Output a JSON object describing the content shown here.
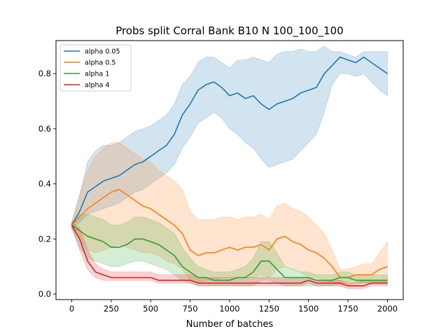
{
  "chart_data": {
    "type": "line",
    "title": "Probs split Corral Bank B10 N 100_100_100",
    "xlabel": "Number of batches",
    "ylabel": "",
    "xlim": [
      -100,
      2100
    ],
    "ylim": [
      -0.02,
      0.92
    ],
    "xticks": [
      0,
      250,
      500,
      750,
      1000,
      1250,
      1500,
      1750,
      2000
    ],
    "yticks": [
      0.0,
      0.2,
      0.4,
      0.6,
      0.8
    ],
    "grid": false,
    "legend_position": "top-left",
    "series": [
      {
        "name": "alpha 0.05",
        "color": "#1f77b4",
        "x": [
          0,
          50,
          100,
          150,
          200,
          250,
          300,
          350,
          400,
          450,
          500,
          550,
          600,
          650,
          700,
          750,
          800,
          850,
          900,
          950,
          1000,
          1050,
          1100,
          1150,
          1200,
          1250,
          1300,
          1350,
          1400,
          1450,
          1500,
          1550,
          1600,
          1650,
          1700,
          1750,
          1800,
          1850,
          1900,
          1950,
          2000
        ],
        "mean": [
          0.25,
          0.3,
          0.37,
          0.39,
          0.41,
          0.42,
          0.43,
          0.45,
          0.47,
          0.48,
          0.5,
          0.52,
          0.54,
          0.58,
          0.65,
          0.69,
          0.74,
          0.76,
          0.77,
          0.75,
          0.72,
          0.73,
          0.71,
          0.72,
          0.69,
          0.67,
          0.69,
          0.7,
          0.71,
          0.73,
          0.74,
          0.75,
          0.8,
          0.83,
          0.86,
          0.85,
          0.84,
          0.86,
          0.84,
          0.82,
          0.8
        ],
        "lower": [
          0.24,
          0.26,
          0.29,
          0.3,
          0.31,
          0.32,
          0.33,
          0.35,
          0.37,
          0.38,
          0.4,
          0.42,
          0.44,
          0.47,
          0.53,
          0.57,
          0.62,
          0.64,
          0.66,
          0.64,
          0.6,
          0.58,
          0.55,
          0.53,
          0.49,
          0.46,
          0.47,
          0.48,
          0.49,
          0.52,
          0.55,
          0.58,
          0.66,
          0.76,
          0.8,
          0.8,
          0.79,
          0.8,
          0.77,
          0.74,
          0.72
        ],
        "upper": [
          0.26,
          0.36,
          0.48,
          0.52,
          0.54,
          0.54,
          0.55,
          0.57,
          0.59,
          0.6,
          0.61,
          0.63,
          0.65,
          0.69,
          0.76,
          0.79,
          0.84,
          0.86,
          0.86,
          0.84,
          0.82,
          0.85,
          0.85,
          0.86,
          0.85,
          0.84,
          0.87,
          0.88,
          0.88,
          0.89,
          0.88,
          0.88,
          0.9,
          0.88,
          0.88,
          0.87,
          0.86,
          0.88,
          0.88,
          0.88,
          0.88
        ]
      },
      {
        "name": "alpha 0.5",
        "color": "#ff7f0e",
        "x": [
          0,
          50,
          100,
          150,
          200,
          250,
          300,
          350,
          400,
          450,
          500,
          550,
          600,
          650,
          700,
          750,
          800,
          850,
          900,
          950,
          1000,
          1050,
          1100,
          1150,
          1200,
          1250,
          1300,
          1350,
          1400,
          1450,
          1500,
          1550,
          1600,
          1650,
          1700,
          1750,
          1800,
          1850,
          1900,
          1950,
          2000
        ],
        "mean": [
          0.25,
          0.28,
          0.31,
          0.33,
          0.35,
          0.37,
          0.38,
          0.36,
          0.34,
          0.32,
          0.31,
          0.29,
          0.27,
          0.25,
          0.22,
          0.16,
          0.14,
          0.15,
          0.15,
          0.16,
          0.17,
          0.16,
          0.17,
          0.17,
          0.18,
          0.16,
          0.2,
          0.21,
          0.19,
          0.18,
          0.16,
          0.15,
          0.13,
          0.1,
          0.06,
          0.06,
          0.07,
          0.07,
          0.07,
          0.09,
          0.1
        ],
        "lower": [
          0.24,
          0.2,
          0.16,
          0.15,
          0.16,
          0.17,
          0.18,
          0.17,
          0.16,
          0.15,
          0.15,
          0.14,
          0.12,
          0.11,
          0.09,
          0.05,
          0.04,
          0.05,
          0.05,
          0.06,
          0.06,
          0.06,
          0.06,
          0.06,
          0.07,
          0.06,
          0.09,
          0.1,
          0.09,
          0.08,
          0.06,
          0.06,
          0.05,
          0.04,
          0.03,
          0.03,
          0.04,
          0.04,
          0.04,
          0.04,
          0.04
        ],
        "upper": [
          0.26,
          0.36,
          0.45,
          0.5,
          0.53,
          0.55,
          0.55,
          0.53,
          0.51,
          0.49,
          0.48,
          0.45,
          0.43,
          0.41,
          0.38,
          0.3,
          0.27,
          0.27,
          0.27,
          0.28,
          0.28,
          0.27,
          0.28,
          0.28,
          0.29,
          0.27,
          0.32,
          0.33,
          0.31,
          0.3,
          0.28,
          0.25,
          0.22,
          0.16,
          0.09,
          0.09,
          0.1,
          0.11,
          0.11,
          0.15,
          0.19
        ]
      },
      {
        "name": "alpha 1",
        "color": "#2ca02c",
        "x": [
          0,
          50,
          100,
          150,
          200,
          250,
          300,
          350,
          400,
          450,
          500,
          550,
          600,
          650,
          700,
          750,
          800,
          850,
          900,
          950,
          1000,
          1050,
          1100,
          1150,
          1200,
          1250,
          1300,
          1350,
          1400,
          1450,
          1500,
          1550,
          1600,
          1650,
          1700,
          1750,
          1800,
          1850,
          1900,
          1950,
          2000
        ],
        "mean": [
          0.25,
          0.23,
          0.21,
          0.2,
          0.19,
          0.17,
          0.17,
          0.18,
          0.2,
          0.2,
          0.19,
          0.18,
          0.16,
          0.14,
          0.1,
          0.08,
          0.06,
          0.06,
          0.05,
          0.05,
          0.05,
          0.06,
          0.06,
          0.08,
          0.12,
          0.12,
          0.09,
          0.06,
          0.06,
          0.06,
          0.06,
          0.05,
          0.05,
          0.05,
          0.06,
          0.06,
          0.05,
          0.05,
          0.05,
          0.05,
          0.05
        ],
        "lower": [
          0.24,
          0.17,
          0.13,
          0.12,
          0.11,
          0.1,
          0.1,
          0.11,
          0.12,
          0.12,
          0.11,
          0.1,
          0.09,
          0.07,
          0.05,
          0.04,
          0.03,
          0.03,
          0.03,
          0.03,
          0.03,
          0.03,
          0.03,
          0.03,
          0.05,
          0.05,
          0.04,
          0.03,
          0.03,
          0.03,
          0.03,
          0.03,
          0.03,
          0.03,
          0.04,
          0.04,
          0.04,
          0.04,
          0.04,
          0.04,
          0.04
        ],
        "upper": [
          0.26,
          0.29,
          0.29,
          0.28,
          0.27,
          0.25,
          0.25,
          0.26,
          0.28,
          0.28,
          0.27,
          0.26,
          0.24,
          0.22,
          0.17,
          0.13,
          0.1,
          0.09,
          0.08,
          0.08,
          0.08,
          0.09,
          0.1,
          0.13,
          0.19,
          0.19,
          0.15,
          0.1,
          0.09,
          0.08,
          0.08,
          0.07,
          0.07,
          0.07,
          0.08,
          0.08,
          0.07,
          0.07,
          0.07,
          0.07,
          0.07
        ]
      },
      {
        "name": "alpha 4",
        "color": "#d62728",
        "x": [
          0,
          50,
          100,
          150,
          200,
          250,
          300,
          350,
          400,
          450,
          500,
          550,
          600,
          650,
          700,
          750,
          800,
          850,
          900,
          950,
          1000,
          1050,
          1100,
          1150,
          1200,
          1250,
          1300,
          1350,
          1400,
          1450,
          1500,
          1550,
          1600,
          1650,
          1700,
          1750,
          1800,
          1850,
          1900,
          1950,
          2000
        ],
        "mean": [
          0.25,
          0.2,
          0.12,
          0.08,
          0.07,
          0.06,
          0.06,
          0.06,
          0.06,
          0.06,
          0.06,
          0.05,
          0.05,
          0.05,
          0.05,
          0.05,
          0.04,
          0.04,
          0.04,
          0.04,
          0.04,
          0.04,
          0.04,
          0.04,
          0.04,
          0.04,
          0.04,
          0.04,
          0.04,
          0.04,
          0.05,
          0.04,
          0.04,
          0.04,
          0.04,
          0.03,
          0.03,
          0.03,
          0.04,
          0.04,
          0.04
        ],
        "lower": [
          0.24,
          0.16,
          0.09,
          0.06,
          0.05,
          0.05,
          0.05,
          0.05,
          0.05,
          0.05,
          0.05,
          0.04,
          0.04,
          0.04,
          0.04,
          0.04,
          0.03,
          0.03,
          0.03,
          0.03,
          0.03,
          0.03,
          0.03,
          0.03,
          0.03,
          0.03,
          0.03,
          0.03,
          0.03,
          0.03,
          0.04,
          0.03,
          0.03,
          0.03,
          0.03,
          0.02,
          0.02,
          0.02,
          0.03,
          0.03,
          0.03
        ],
        "upper": [
          0.26,
          0.24,
          0.16,
          0.11,
          0.09,
          0.08,
          0.08,
          0.08,
          0.08,
          0.08,
          0.08,
          0.07,
          0.07,
          0.07,
          0.07,
          0.07,
          0.06,
          0.06,
          0.06,
          0.06,
          0.06,
          0.06,
          0.06,
          0.06,
          0.06,
          0.06,
          0.06,
          0.06,
          0.06,
          0.06,
          0.06,
          0.05,
          0.05,
          0.05,
          0.05,
          0.04,
          0.04,
          0.05,
          0.05,
          0.05,
          0.05
        ]
      }
    ]
  }
}
